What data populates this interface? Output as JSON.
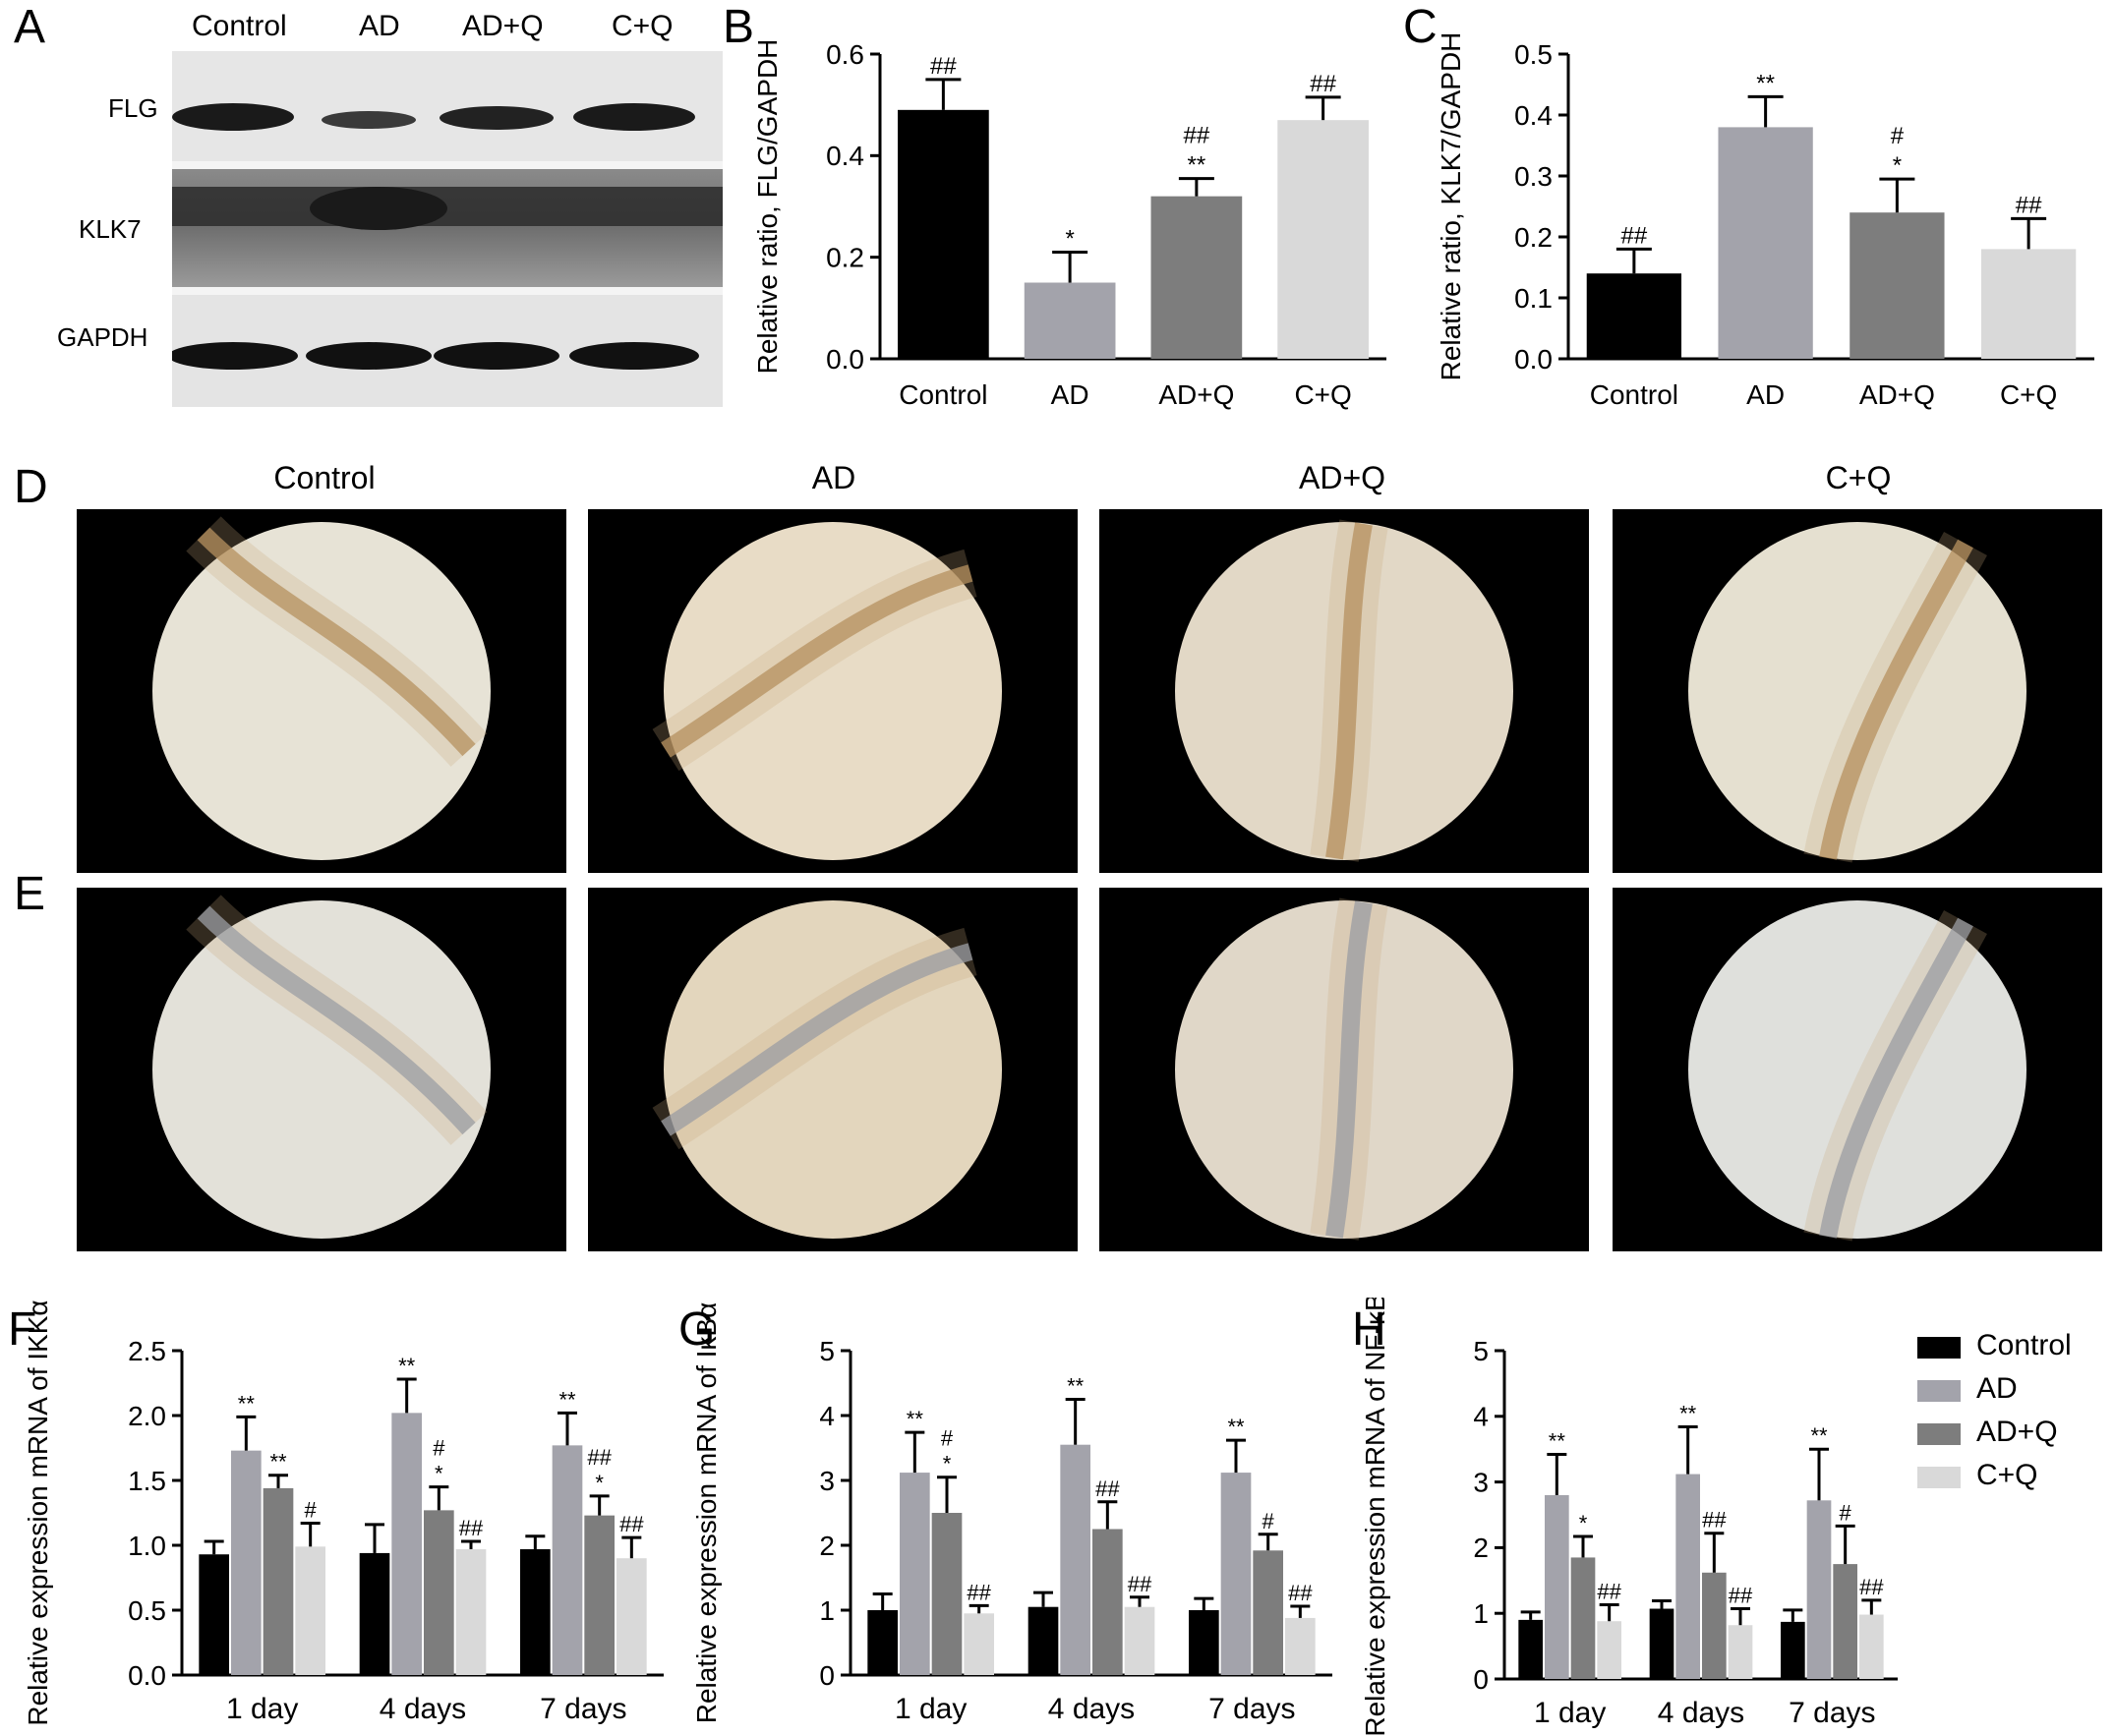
{
  "panels": {
    "A": "A",
    "B": "B",
    "C": "C",
    "D": "D",
    "E": "E",
    "F": "F",
    "G": "G",
    "H": "H"
  },
  "colors": {
    "Control": "#000000",
    "AD": "#a3a3ab",
    "AD+Q": "#7d7d7d",
    "C+Q": "#d9d9d9"
  },
  "western_blot": {
    "columns": [
      "Control",
      "AD",
      "AD+Q",
      "C+Q"
    ],
    "rows": [
      "FLG",
      "KLK7",
      "GAPDH"
    ]
  },
  "ihc": {
    "columns": [
      "Control",
      "AD",
      "AD+Q",
      "C+Q"
    ]
  },
  "legend": [
    {
      "label": "Control",
      "color_key": "Control"
    },
    {
      "label": "AD",
      "color_key": "AD"
    },
    {
      "label": "AD+Q",
      "color_key": "AD+Q"
    },
    {
      "label": "C+Q",
      "color_key": "C+Q"
    }
  ],
  "chart_data": [
    {
      "panel": "B",
      "type": "bar",
      "ylabel": "Relative ratio, FLG/GAPDH",
      "categories": [
        "Control",
        "AD",
        "AD+Q",
        "C+Q"
      ],
      "values": [
        0.49,
        0.15,
        0.32,
        0.47
      ],
      "errors": [
        0.06,
        0.06,
        0.035,
        0.045
      ],
      "annotations": [
        [
          "##"
        ],
        [
          "*"
        ],
        [
          "##",
          "**"
        ],
        [
          "##"
        ]
      ],
      "ylim": [
        0,
        0.6
      ],
      "yticks": [
        "0.0",
        "0.2",
        "0.4",
        "0.6"
      ]
    },
    {
      "panel": "C",
      "type": "bar",
      "ylabel": "Relative ratio, KLK7/GAPDH",
      "categories": [
        "Control",
        "AD",
        "AD+Q",
        "C+Q"
      ],
      "values": [
        0.14,
        0.38,
        0.24,
        0.18
      ],
      "errors": [
        0.04,
        0.05,
        0.055,
        0.05
      ],
      "annotations": [
        [
          "##"
        ],
        [
          "**"
        ],
        [
          "#",
          "*"
        ],
        [
          "##"
        ]
      ],
      "ylim": [
        0,
        0.5
      ],
      "yticks": [
        "0.0",
        "0.1",
        "0.2",
        "0.3",
        "0.4",
        "0.5"
      ]
    },
    {
      "panel": "F",
      "type": "bar",
      "ylabel": "Relative expression mRNA of IKKα",
      "categories": [
        "1 day",
        "4 days",
        "7 days"
      ],
      "series": [
        {
          "name": "Control",
          "values": [
            0.93,
            0.94,
            0.97
          ],
          "errors": [
            0.1,
            0.22,
            0.1
          ],
          "annotations": [
            [],
            [],
            []
          ]
        },
        {
          "name": "AD",
          "values": [
            1.73,
            2.02,
            1.77
          ],
          "errors": [
            0.26,
            0.26,
            0.25
          ],
          "annotations": [
            [
              "**"
            ],
            [
              "**"
            ],
            [
              "**"
            ]
          ]
        },
        {
          "name": "AD+Q",
          "values": [
            1.44,
            1.27,
            1.23
          ],
          "errors": [
            0.1,
            0.18,
            0.15
          ],
          "annotations": [
            [
              "**"
            ],
            [
              "#",
              "*"
            ],
            [
              "##",
              "*"
            ]
          ]
        },
        {
          "name": "C+Q",
          "values": [
            0.99,
            0.97,
            0.9
          ],
          "errors": [
            0.18,
            0.06,
            0.16
          ],
          "annotations": [
            [
              "#"
            ],
            [
              "##"
            ],
            [
              "##"
            ]
          ]
        }
      ],
      "ylim": [
        0,
        2.5
      ],
      "yticks": [
        "0.0",
        "0.5",
        "1.0",
        "1.5",
        "2.0",
        "2.5"
      ]
    },
    {
      "panel": "G",
      "type": "bar",
      "ylabel": "Relative expression mRNA of IκBα",
      "categories": [
        "1 day",
        "4 days",
        "7 days"
      ],
      "series": [
        {
          "name": "Control",
          "values": [
            1.0,
            1.05,
            1.0
          ],
          "errors": [
            0.25,
            0.22,
            0.18
          ],
          "annotations": [
            [],
            [],
            []
          ]
        },
        {
          "name": "AD",
          "values": [
            3.12,
            3.55,
            3.12
          ],
          "errors": [
            0.62,
            0.7,
            0.5
          ],
          "annotations": [
            [
              "**"
            ],
            [
              "**"
            ],
            [
              "**"
            ]
          ]
        },
        {
          "name": "AD+Q",
          "values": [
            2.5,
            2.25,
            1.92
          ],
          "errors": [
            0.55,
            0.42,
            0.25
          ],
          "annotations": [
            [
              "#",
              "*"
            ],
            [
              "##"
            ],
            [
              "#"
            ]
          ]
        },
        {
          "name": "C+Q",
          "values": [
            0.95,
            1.05,
            0.88
          ],
          "errors": [
            0.12,
            0.15,
            0.18
          ],
          "annotations": [
            [
              "##"
            ],
            [
              "##"
            ],
            [
              "##"
            ]
          ]
        }
      ],
      "ylim": [
        0,
        5
      ],
      "yticks": [
        "0",
        "1",
        "2",
        "3",
        "4",
        "5"
      ]
    },
    {
      "panel": "H",
      "type": "bar",
      "ylabel": "Relative expression mRNA of NF-κB",
      "categories": [
        "1 day",
        "4 days",
        "7 days"
      ],
      "series": [
        {
          "name": "Control",
          "values": [
            0.9,
            1.07,
            0.87
          ],
          "errors": [
            0.12,
            0.12,
            0.18
          ],
          "annotations": [
            [],
            [],
            []
          ]
        },
        {
          "name": "AD",
          "values": [
            2.8,
            3.12,
            2.72
          ],
          "errors": [
            0.62,
            0.72,
            0.78
          ],
          "annotations": [
            [
              "**"
            ],
            [
              "**"
            ],
            [
              "**"
            ]
          ]
        },
        {
          "name": "AD+Q",
          "values": [
            1.85,
            1.62,
            1.75
          ],
          "errors": [
            0.32,
            0.6,
            0.58
          ],
          "annotations": [
            [
              "*"
            ],
            [
              "##"
            ],
            [
              "#"
            ]
          ]
        },
        {
          "name": "C+Q",
          "values": [
            0.88,
            0.82,
            0.98
          ],
          "errors": [
            0.25,
            0.25,
            0.22
          ],
          "annotations": [
            [
              "##"
            ],
            [
              "##"
            ],
            [
              "##"
            ]
          ]
        }
      ],
      "ylim": [
        0,
        5
      ],
      "yticks": [
        "0",
        "1",
        "2",
        "3",
        "4",
        "5"
      ]
    }
  ]
}
